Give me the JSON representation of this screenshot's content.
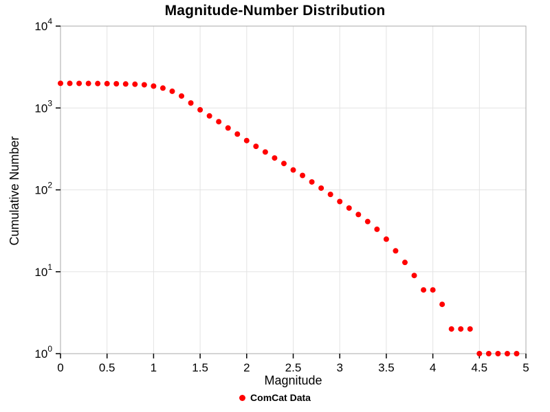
{
  "chart_data": {
    "type": "scatter",
    "title": "Magnitude-Number Distribution",
    "xlabel": "Magnitude",
    "ylabel": "Cumulative Number",
    "x_scale": "linear",
    "y_scale": "log",
    "xlim": [
      0,
      5
    ],
    "ylim": [
      1,
      10000
    ],
    "x_ticks": [
      0,
      0.5,
      1,
      1.5,
      2,
      2.5,
      3,
      3.5,
      4,
      4.5,
      5
    ],
    "x_tick_labels": [
      "0",
      "0.5",
      "1",
      "1.5",
      "2",
      "2.5",
      "3",
      "3.5",
      "4",
      "4.5",
      "5"
    ],
    "y_tick_exponents": [
      0,
      1,
      2,
      3,
      4
    ],
    "grid": true,
    "legend_position": "bottom-center",
    "series": [
      {
        "name": "ComCat Data",
        "color": "#ff0000",
        "marker": "circle",
        "x": [
          0.0,
          0.1,
          0.2,
          0.3,
          0.4,
          0.5,
          0.6,
          0.7,
          0.8,
          0.9,
          1.0,
          1.1,
          1.2,
          1.3,
          1.4,
          1.5,
          1.6,
          1.7,
          1.8,
          1.9,
          2.0,
          2.1,
          2.2,
          2.3,
          2.4,
          2.5,
          2.6,
          2.7,
          2.8,
          2.9,
          3.0,
          3.1,
          3.2,
          3.3,
          3.4,
          3.5,
          3.6,
          3.7,
          3.8,
          3.9,
          4.0,
          4.1,
          4.2,
          4.3,
          4.4,
          4.5,
          4.6,
          4.7,
          4.8,
          4.9
        ],
        "y": [
          2000,
          1998,
          1995,
          1992,
          1988,
          1983,
          1975,
          1965,
          1950,
          1920,
          1850,
          1750,
          1600,
          1400,
          1150,
          950,
          800,
          680,
          570,
          480,
          400,
          340,
          290,
          245,
          210,
          175,
          150,
          125,
          105,
          88,
          72,
          60,
          50,
          41,
          33,
          25,
          18,
          13,
          9,
          6,
          6,
          4,
          2,
          2,
          2,
          1,
          1,
          1,
          1,
          1
        ]
      }
    ]
  },
  "style": {
    "grid_color": "#e3e3e3",
    "frame_color": "#a8a8a8",
    "tick_color": "#000000",
    "background": "#ffffff"
  }
}
